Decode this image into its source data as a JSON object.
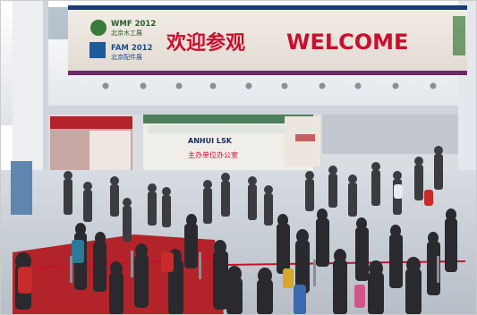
{
  "banner": {
    "headline_cn": "欢迎参观",
    "headline_en": "WELCOME",
    "logo_top_title": "WMF 2012",
    "logo_top_sub": "北京木工展",
    "logo_bottom_title": "FAM 2012",
    "logo_bottom_sub": "北京配件展",
    "bg_color": "#e9e3dc",
    "text_color": "#c8102e",
    "stripe_top_color": "#1a3a7a",
    "stripe_bottom_color": "#6a2a6a"
  },
  "booth": {
    "sign_text": "ANHUI LSK",
    "sign_sub": "主办单位办公室",
    "accent_color": "#c8102e"
  },
  "colors": {
    "ceiling": "#f2f3f5",
    "floor": "#c9cfd6",
    "carpet": "#b3242a",
    "crowd_dark": "#2a2a2e",
    "pillar": "#e7e9ec"
  }
}
